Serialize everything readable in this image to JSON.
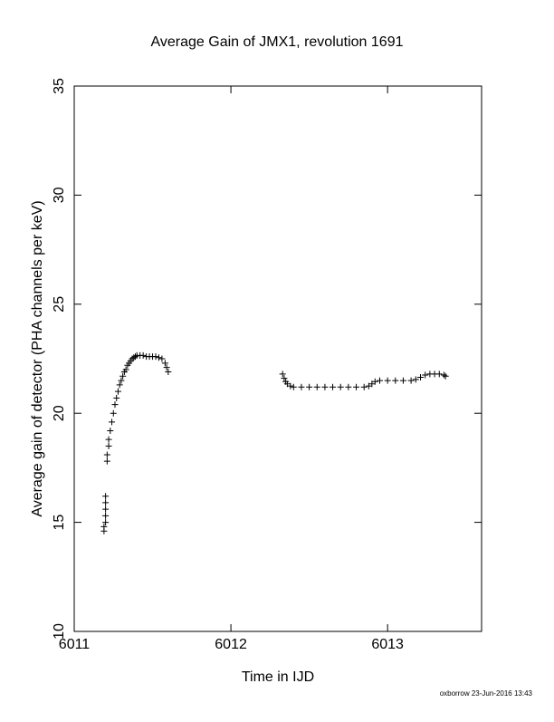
{
  "chart_data": {
    "type": "scatter",
    "title": "Average Gain of JMX1, revolution 1691",
    "x_label": "Time in IJD",
    "y_label": "Average gain of detector (PHA channels per keV)",
    "footer": "oxborrow 23-Jun-2016 13:43",
    "marker": "+",
    "color": "#000000",
    "xlim": [
      6011,
      6013.6
    ],
    "xticks": [
      6011,
      6012,
      6013
    ],
    "ylim": [
      10,
      35
    ],
    "yticks": [
      10,
      15,
      20,
      25,
      30,
      35
    ],
    "x": [
      6011.19,
      6011.19,
      6011.2,
      6011.2,
      6011.2,
      6011.2,
      6011.2,
      6011.21,
      6011.21,
      6011.22,
      6011.22,
      6011.23,
      6011.24,
      6011.25,
      6011.26,
      6011.27,
      6011.28,
      6011.29,
      6011.3,
      6011.31,
      6011.32,
      6011.33,
      6011.34,
      6011.35,
      6011.36,
      6011.37,
      6011.38,
      6011.39,
      6011.4,
      6011.42,
      6011.44,
      6011.46,
      6011.48,
      6011.5,
      6011.52,
      6011.54,
      6011.56,
      6011.58,
      6011.59,
      6011.6,
      6012.33,
      6012.34,
      6012.35,
      6012.36,
      6012.38,
      6012.4,
      6012.45,
      6012.5,
      6012.55,
      6012.6,
      6012.65,
      6012.7,
      6012.75,
      6012.8,
      6012.85,
      6012.88,
      6012.9,
      6012.92,
      6012.95,
      6013.0,
      6013.05,
      6013.1,
      6013.15,
      6013.18,
      6013.21,
      6013.24,
      6013.27,
      6013.3,
      6013.33,
      6013.36,
      6013.37
    ],
    "values": [
      14.6,
      14.8,
      15.0,
      15.3,
      15.6,
      15.9,
      16.2,
      17.8,
      18.1,
      18.5,
      18.8,
      19.2,
      19.6,
      20.0,
      20.4,
      20.7,
      21.0,
      21.3,
      21.5,
      21.7,
      21.9,
      22.0,
      22.2,
      22.3,
      22.4,
      22.5,
      22.55,
      22.6,
      22.65,
      22.65,
      22.65,
      22.6,
      22.6,
      22.6,
      22.6,
      22.55,
      22.5,
      22.3,
      22.1,
      21.9,
      21.8,
      21.6,
      21.45,
      21.35,
      21.25,
      21.2,
      21.2,
      21.2,
      21.2,
      21.2,
      21.2,
      21.2,
      21.2,
      21.2,
      21.2,
      21.25,
      21.35,
      21.45,
      21.5,
      21.5,
      21.5,
      21.5,
      21.5,
      21.55,
      21.65,
      21.75,
      21.8,
      21.8,
      21.8,
      21.75,
      21.7
    ]
  }
}
